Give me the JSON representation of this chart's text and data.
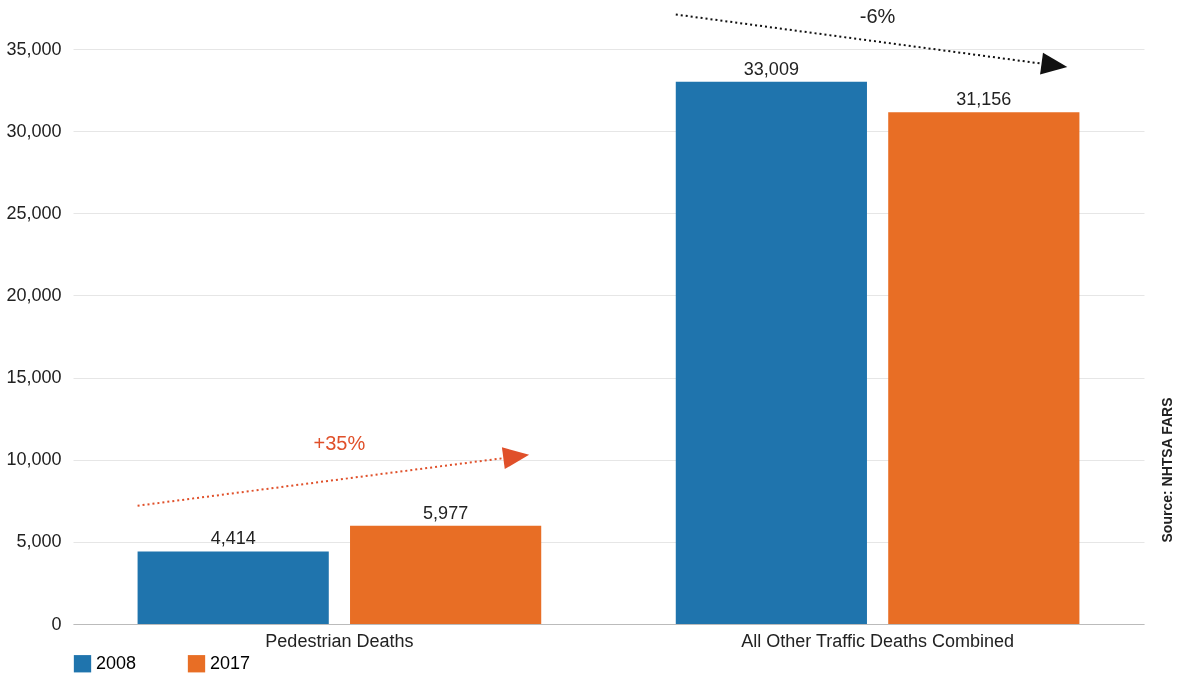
{
  "chart_data": {
    "type": "bar",
    "categories": [
      "Pedestrian Deaths",
      "All Other Traffic Deaths Combined"
    ],
    "series": [
      {
        "name": "2008",
        "color": "#1f74ad",
        "values": [
          4414,
          33009
        ],
        "value_labels": [
          "4,414",
          "33,009"
        ]
      },
      {
        "name": "2017",
        "color": "#e86e25",
        "values": [
          5977,
          31156
        ],
        "value_labels": [
          "5,977",
          "31,156"
        ]
      }
    ],
    "ylim": [
      0,
      35000
    ],
    "yticks": [
      0,
      {
        "value": 5000,
        "label": "5,000"
      },
      {
        "value": 10000,
        "label": "10,000"
      },
      {
        "value": 15000,
        "label": "15,000"
      },
      {
        "value": 20000,
        "label": "20,000"
      },
      {
        "value": 25000,
        "label": "25,000"
      },
      {
        "value": 30000,
        "label": "30,000"
      },
      {
        "value": 35000,
        "label": "35,000"
      }
    ],
    "grid": "y",
    "legend": "bottom",
    "annotations": [
      "+35%",
      "-6%",
      "Source: NHTSA FARS"
    ]
  }
}
